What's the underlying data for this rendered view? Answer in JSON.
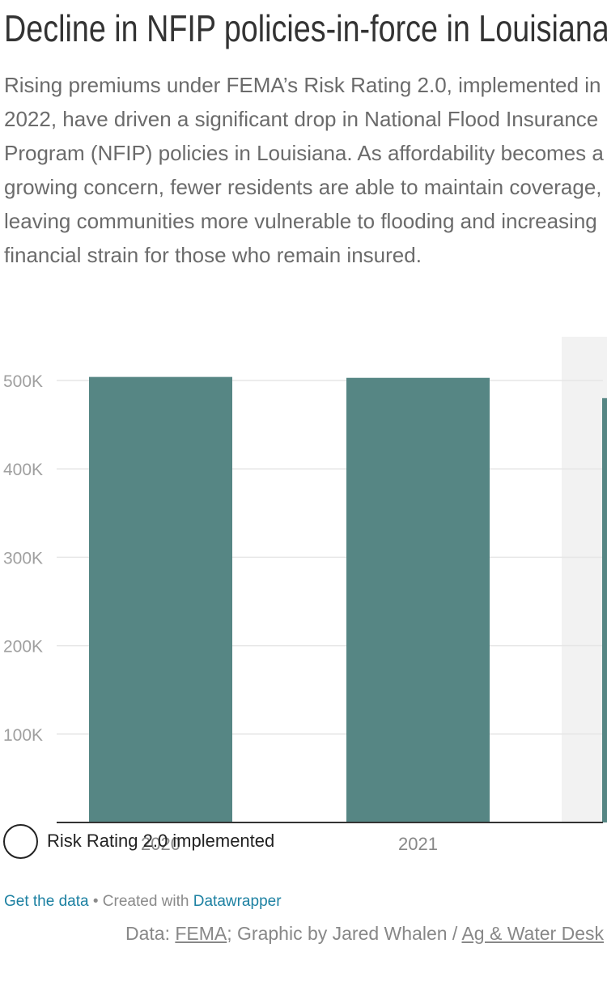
{
  "header": {
    "title": "Decline in NFIP policies-in-force in Louisiana",
    "description": "Rising premiums under FEMA’s Risk Rating 2.0, implemented in 2022, have driven a significant drop in National Flood Insurance Program (NFIP) policies in Louisiana. As affordability becomes a growing concern, fewer residents are able to maintain coverage, leaving communities more vulnerable to flooding and increasing financial strain for those who remain insured."
  },
  "colors": {
    "bar": "#568684",
    "grid": "#e6e6e6",
    "axis_text": "#a0a0a0",
    "highlight_band": "#f2f2f2",
    "link": "#1d81a2"
  },
  "chart_data": {
    "type": "bar",
    "categories": [
      "2020",
      "2021"
    ],
    "values": [
      504000,
      503000
    ],
    "yticks": [
      "100K",
      "200K",
      "300K",
      "400K",
      "500K"
    ],
    "ylim": [
      0,
      500000
    ],
    "grid": true,
    "annotation": "Risk Rating 2.0 implemented",
    "partially_visible_next_bar_value": 480000
  },
  "footer": {
    "get_data": "Get the data",
    "bullet": "•",
    "created_with": "Created with",
    "datawrapper": "Datawrapper",
    "source_prefix": "Data:",
    "source_name": "FEMA",
    "graphic_by": "; Graphic by Jared Whalen /",
    "org": "Ag & Water Desk"
  }
}
